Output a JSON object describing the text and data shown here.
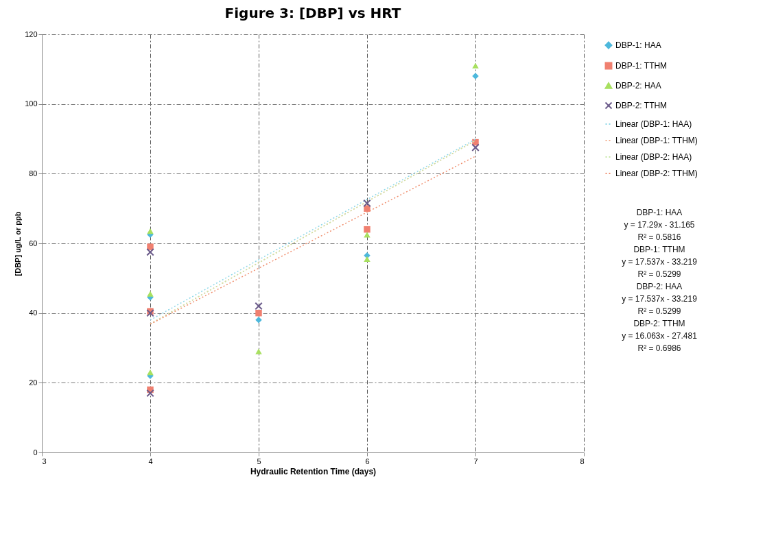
{
  "chart_data": {
    "type": "scatter",
    "title": "Figure 3: [DBP] vs HRT",
    "xlabel": "Hydraulic Retention Time (days)",
    "ylabel": "[DBP] ug/L or ppb",
    "xlim": [
      3,
      8
    ],
    "xticks": [
      3,
      4,
      5,
      6,
      7,
      8
    ],
    "ylim": [
      0,
      120
    ],
    "yticks": [
      0,
      20,
      40,
      60,
      80,
      100,
      120
    ],
    "grid": true,
    "legend": "right",
    "series": [
      {
        "name": "DBP-1: HAA",
        "color": "#4db8dc",
        "marker": "diamond",
        "x": [
          4,
          4,
          4,
          5,
          6,
          7
        ],
        "values": [
          22,
          44.5,
          62.5,
          38,
          56.5,
          108
        ]
      },
      {
        "name": "DBP-1: TTHM",
        "color": "#f08070",
        "marker": "square",
        "x": [
          4,
          4,
          4,
          5,
          6,
          6,
          7
        ],
        "values": [
          18,
          40.5,
          59,
          40,
          64,
          70,
          89
        ]
      },
      {
        "name": "DBP-2: HAA",
        "color": "#a8e060",
        "marker": "triangle",
        "x": [
          4,
          4,
          4,
          5,
          6,
          6,
          7
        ],
        "values": [
          23,
          45.5,
          63.5,
          29,
          62.5,
          55.5,
          111
        ]
      },
      {
        "name": "DBP-2: TTHM",
        "color": "#6a5a8a",
        "marker": "cross",
        "x": [
          4,
          4,
          4,
          5,
          6,
          7
        ],
        "values": [
          17,
          40,
          57.5,
          42,
          71.5,
          87.5
        ]
      },
      {
        "name": "Linear (DBP-1: HAA)",
        "type": "line",
        "color": "#8fd8e8",
        "line_style": "dotted",
        "x": [
          4,
          7
        ],
        "values": [
          38.0,
          89.9
        ]
      },
      {
        "name": "Linear (DBP-1: TTHM)",
        "type": "line",
        "color": "#f4b090",
        "line_style": "dotted",
        "x": [
          4,
          7
        ],
        "values": [
          36.9,
          89.5
        ]
      },
      {
        "name": "Linear (DBP-2: HAA)",
        "type": "line",
        "color": "#c8e8a8",
        "line_style": "dotted",
        "x": [
          4,
          7
        ],
        "values": [
          36.9,
          89.5
        ]
      },
      {
        "name": "Linear (DBP-2: TTHM)",
        "type": "line",
        "color": "#f09070",
        "line_style": "dotted",
        "x": [
          4,
          7
        ],
        "values": [
          36.8,
          85.0
        ]
      }
    ],
    "annotations": [
      "DBP-1: HAA",
      "y = 17.29x - 31.165",
      "R² = 0.5816",
      "DBP-1: TTHM",
      "y = 17.537x - 33.219",
      "R² = 0.5299",
      "DBP-2: HAA",
      "y = 17.537x - 33.219",
      "R² = 0.5299",
      "DBP-2: TTHM",
      "y = 16.063x - 27.481",
      "R² = 0.6986"
    ]
  }
}
